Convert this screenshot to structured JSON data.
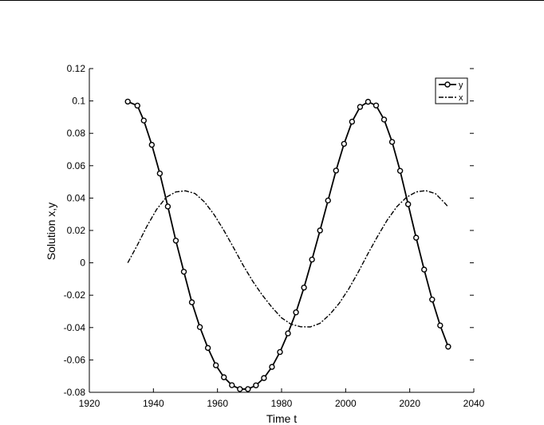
{
  "chart_data": {
    "type": "line",
    "xlabel": "Time t",
    "ylabel": "Solution x,y",
    "xlim": [
      1920,
      2040
    ],
    "ylim": [
      -0.08,
      0.12
    ],
    "xticks": [
      1920,
      1940,
      1960,
      1980,
      2000,
      2020,
      2040
    ],
    "yticks": [
      -0.08,
      -0.06,
      -0.04,
      -0.02,
      0,
      0.02,
      0.04,
      0.06,
      0.08,
      0.1,
      0.12
    ],
    "xtick_labels": [
      "1920",
      "1940",
      "1960",
      "1980",
      "2000",
      "2020",
      "2040"
    ],
    "ytick_labels": [
      "-0.08",
      "-0.06",
      "-0.04",
      "-0.02",
      "0",
      "0.02",
      "0.04",
      "0.06",
      "0.08",
      "0.1",
      "0.12"
    ],
    "grid": false,
    "legend_position": "top-right",
    "series": [
      {
        "name": "y",
        "style": "solid-with-circle-markers",
        "color": "#000000",
        "x": [
          1932,
          1935,
          1937,
          1939.5,
          1942,
          1944.5,
          1947,
          1949.5,
          1952,
          1954.5,
          1957,
          1959.5,
          1962,
          1964.5,
          1967,
          1969.5,
          1972,
          1974.5,
          1977,
          1979.5,
          1982,
          1984.5,
          1987,
          1989.5,
          1992,
          1994.5,
          1997,
          1999.5,
          2002,
          2004.5,
          2007,
          2009.5,
          2012,
          2014.5,
          2017,
          2019.5,
          2022,
          2024.5,
          2027,
          2029.5,
          2032
        ],
        "y": [
          0.0996,
          0.0971,
          0.0879,
          0.0729,
          0.0552,
          0.0348,
          0.0137,
          -0.0055,
          -0.0244,
          -0.0397,
          -0.0526,
          -0.0633,
          -0.0707,
          -0.0756,
          -0.078,
          -0.078,
          -0.0757,
          -0.0712,
          -0.0643,
          -0.0551,
          -0.0436,
          -0.0306,
          -0.0153,
          0.002,
          0.02,
          0.0385,
          0.057,
          0.0735,
          0.0872,
          0.0963,
          0.0995,
          0.0972,
          0.0885,
          0.0747,
          0.0568,
          0.0362,
          0.0155,
          -0.0042,
          -0.0227,
          -0.0387,
          -0.0518
        ]
      },
      {
        "name": "x",
        "style": "dash-dot",
        "color": "#000000",
        "x": [
          1932,
          1935,
          1938,
          1941,
          1944,
          1947,
          1950,
          1953,
          1956,
          1959,
          1962,
          1965,
          1968,
          1971,
          1974,
          1977,
          1980,
          1983,
          1986,
          1989,
          1992,
          1995,
          1998,
          2001,
          2004,
          2007,
          2010,
          2013,
          2016,
          2019,
          2022,
          2025,
          2028,
          2031,
          2032
        ],
        "y": [
          0.0,
          0.011,
          0.0227,
          0.033,
          0.0405,
          0.0438,
          0.0445,
          0.0428,
          0.0375,
          0.0296,
          0.02,
          0.0094,
          -0.0015,
          -0.0114,
          -0.02,
          -0.0275,
          -0.034,
          -0.038,
          -0.0395,
          -0.0396,
          -0.0374,
          -0.032,
          -0.025,
          -0.016,
          -0.0055,
          0.0058,
          0.0165,
          0.0265,
          0.0347,
          0.0405,
          0.0438,
          0.0446,
          0.0428,
          0.0368,
          0.0345
        ]
      }
    ]
  }
}
